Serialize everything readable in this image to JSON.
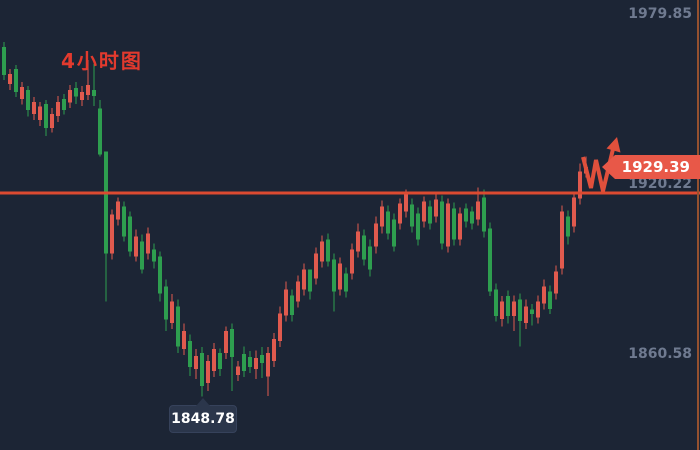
{
  "annotations": {
    "timeframe_label": "4小时图",
    "price_tag": "1929.39",
    "low_badge": "1848.78",
    "forecast_arrow": "red zigzag arrow pointing up-right above resistance line"
  },
  "y_axis": {
    "labels": [
      "1979.85",
      "1920.22",
      "1860.58"
    ],
    "values": [
      1979.85,
      1920.22,
      1860.58
    ]
  },
  "colors": {
    "background": "#1c2535",
    "candle_up": "#e05a4e",
    "candle_down": "#2e9e4f",
    "resistance_line": "#dc4a31",
    "price_tag_bg": "#e85848",
    "annotation_red": "#e0503c",
    "axis_label_gray": "#6f7a90",
    "right_axis_line": "#95512f",
    "tooltip_bg": "#2b364b"
  },
  "chart_data": {
    "type": "candlestick",
    "title": "4小时图 (4-hour chart)",
    "color_convention": "red = up, green = down (Chinese convention)",
    "y_axis_ticks": [
      1979.85,
      1920.22,
      1860.58
    ],
    "ylim": [
      1830,
      1988
    ],
    "grid": false,
    "resistance_line_price": 1920.22,
    "last_price": 1929.39,
    "marked_low": 1848.78,
    "candles_ohlc": [
      [
        1971.5,
        1973.2,
        1959.9,
        1961.7
      ],
      [
        1958.5,
        1963.8,
        1956.4,
        1962.0
      ],
      [
        1963.8,
        1965.2,
        1954.0,
        1955.7
      ],
      [
        1953.3,
        1959.2,
        1951.2,
        1957.5
      ],
      [
        1956.4,
        1957.8,
        1947.0,
        1949.4
      ],
      [
        1948.0,
        1954.0,
        1945.9,
        1952.2
      ],
      [
        1945.9,
        1952.2,
        1943.8,
        1950.5
      ],
      [
        1951.5,
        1952.9,
        1940.3,
        1943.1
      ],
      [
        1943.1,
        1950.1,
        1941.4,
        1948.0
      ],
      [
        1947.3,
        1954.3,
        1945.2,
        1952.2
      ],
      [
        1953.3,
        1955.0,
        1947.7,
        1949.4
      ],
      [
        1951.9,
        1958.2,
        1950.1,
        1956.4
      ],
      [
        1957.1,
        1959.2,
        1951.5,
        1954.0
      ],
      [
        1952.9,
        1957.8,
        1950.8,
        1955.7
      ],
      [
        1954.7,
        1966.9,
        1952.9,
        1958.2
      ],
      [
        1956.4,
        1965.5,
        1950.8,
        1954.3
      ],
      [
        1949.8,
        1952.9,
        1933.0,
        1933.7
      ],
      [
        1934.7,
        1934.7,
        1882.2,
        1899.0
      ],
      [
        1899.0,
        1914.4,
        1896.9,
        1912.7
      ],
      [
        1910.9,
        1918.6,
        1908.8,
        1917.2
      ],
      [
        1915.5,
        1917.2,
        1903.2,
        1904.9
      ],
      [
        1912.0,
        1913.7,
        1897.9,
        1899.7
      ],
      [
        1897.9,
        1907.4,
        1896.2,
        1904.9
      ],
      [
        1903.2,
        1905.6,
        1892.0,
        1893.4
      ],
      [
        1899.0,
        1908.1,
        1896.9,
        1906.0
      ],
      [
        1900.4,
        1902.5,
        1893.7,
        1896.2
      ],
      [
        1897.9,
        1899.7,
        1882.2,
        1885.0
      ],
      [
        1887.4,
        1889.9,
        1871.7,
        1875.9
      ],
      [
        1874.5,
        1884.7,
        1872.4,
        1882.2
      ],
      [
        1880.4,
        1882.9,
        1864.0,
        1866.4
      ],
      [
        1865.4,
        1874.5,
        1863.3,
        1871.7
      ],
      [
        1868.2,
        1870.6,
        1855.9,
        1859.1
      ],
      [
        1858.4,
        1865.4,
        1854.9,
        1863.0
      ],
      [
        1864.0,
        1866.1,
        1848.78,
        1852.4
      ],
      [
        1853.5,
        1863.3,
        1850.7,
        1861.2
      ],
      [
        1857.7,
        1867.5,
        1855.6,
        1865.4
      ],
      [
        1864.0,
        1865.7,
        1855.9,
        1858.4
      ],
      [
        1864.0,
        1873.4,
        1861.9,
        1871.7
      ],
      [
        1872.4,
        1874.5,
        1850.7,
        1862.6
      ],
      [
        1856.3,
        1861.2,
        1854.2,
        1859.4
      ],
      [
        1863.7,
        1866.4,
        1855.6,
        1857.7
      ],
      [
        1862.6,
        1864.7,
        1857.0,
        1859.1
      ],
      [
        1858.4,
        1865.0,
        1854.9,
        1862.3
      ],
      [
        1863.3,
        1866.1,
        1855.2,
        1860.5
      ],
      [
        1855.9,
        1866.1,
        1849.0,
        1864.0
      ],
      [
        1861.2,
        1871.0,
        1859.1,
        1868.9
      ],
      [
        1868.2,
        1880.4,
        1866.1,
        1878.0
      ],
      [
        1877.3,
        1889.2,
        1875.2,
        1886.4
      ],
      [
        1884.3,
        1886.4,
        1875.2,
        1877.3
      ],
      [
        1882.2,
        1891.3,
        1880.1,
        1889.2
      ],
      [
        1886.4,
        1895.5,
        1884.3,
        1893.4
      ],
      [
        1893.4,
        1893.4,
        1882.9,
        1885.7
      ],
      [
        1890.2,
        1901.1,
        1888.1,
        1899.0
      ],
      [
        1896.2,
        1905.3,
        1894.1,
        1903.2
      ],
      [
        1903.9,
        1906.0,
        1894.5,
        1896.2
      ],
      [
        1896.9,
        1899.0,
        1878.7,
        1885.7
      ],
      [
        1886.4,
        1897.6,
        1884.3,
        1895.5
      ],
      [
        1892.0,
        1894.1,
        1883.6,
        1885.7
      ],
      [
        1892.0,
        1902.5,
        1889.9,
        1900.4
      ],
      [
        1899.7,
        1909.5,
        1897.6,
        1906.7
      ],
      [
        1905.3,
        1907.4,
        1894.8,
        1896.9
      ],
      [
        1901.5,
        1903.9,
        1890.9,
        1893.4
      ],
      [
        1901.5,
        1912.0,
        1899.0,
        1909.5
      ],
      [
        1908.5,
        1917.6,
        1906.0,
        1915.5
      ],
      [
        1913.7,
        1915.8,
        1903.9,
        1906.0
      ],
      [
        1910.9,
        1913.0,
        1899.7,
        1901.5
      ],
      [
        1909.5,
        1918.3,
        1907.4,
        1916.5
      ],
      [
        1913.7,
        1921.4,
        1911.6,
        1920.0
      ],
      [
        1916.2,
        1918.3,
        1906.4,
        1908.5
      ],
      [
        1913.0,
        1915.1,
        1901.8,
        1903.9
      ],
      [
        1910.2,
        1919.0,
        1908.1,
        1917.2
      ],
      [
        1915.5,
        1917.6,
        1907.4,
        1909.5
      ],
      [
        1912.0,
        1919.7,
        1909.9,
        1917.9
      ],
      [
        1917.2,
        1919.3,
        1900.4,
        1902.5
      ],
      [
        1901.5,
        1918.3,
        1899.4,
        1916.5
      ],
      [
        1914.8,
        1916.9,
        1901.8,
        1903.9
      ],
      [
        1903.9,
        1915.1,
        1901.8,
        1913.0
      ],
      [
        1914.8,
        1916.5,
        1908.1,
        1910.2
      ],
      [
        1913.7,
        1915.5,
        1907.4,
        1909.5
      ],
      [
        1910.9,
        1922.1,
        1908.8,
        1917.2
      ],
      [
        1918.6,
        1921.4,
        1904.6,
        1906.7
      ],
      [
        1907.8,
        1909.9,
        1884.0,
        1885.7
      ],
      [
        1886.4,
        1888.5,
        1875.2,
        1877.0
      ],
      [
        1875.9,
        1884.0,
        1873.4,
        1882.2
      ],
      [
        1884.0,
        1886.0,
        1874.5,
        1877.0
      ],
      [
        1877.0,
        1884.3,
        1871.7,
        1882.2
      ],
      [
        1882.9,
        1885.0,
        1866.4,
        1875.2
      ],
      [
        1874.5,
        1882.9,
        1872.4,
        1880.4
      ],
      [
        1879.4,
        1881.2,
        1873.8,
        1877.7
      ],
      [
        1876.6,
        1884.3,
        1874.5,
        1882.2
      ],
      [
        1881.5,
        1889.9,
        1879.4,
        1887.4
      ],
      [
        1885.7,
        1887.8,
        1877.7,
        1879.4
      ],
      [
        1885.0,
        1894.8,
        1882.9,
        1892.7
      ],
      [
        1893.7,
        1915.8,
        1891.6,
        1913.7
      ],
      [
        1912.0,
        1914.1,
        1902.2,
        1904.9
      ],
      [
        1908.5,
        1920.7,
        1906.4,
        1918.6
      ],
      [
        1918.3,
        1930.5,
        1916.2,
        1927.7
      ],
      [
        1927.0,
        1933.0,
        1925.6,
        1929.39
      ]
    ]
  }
}
